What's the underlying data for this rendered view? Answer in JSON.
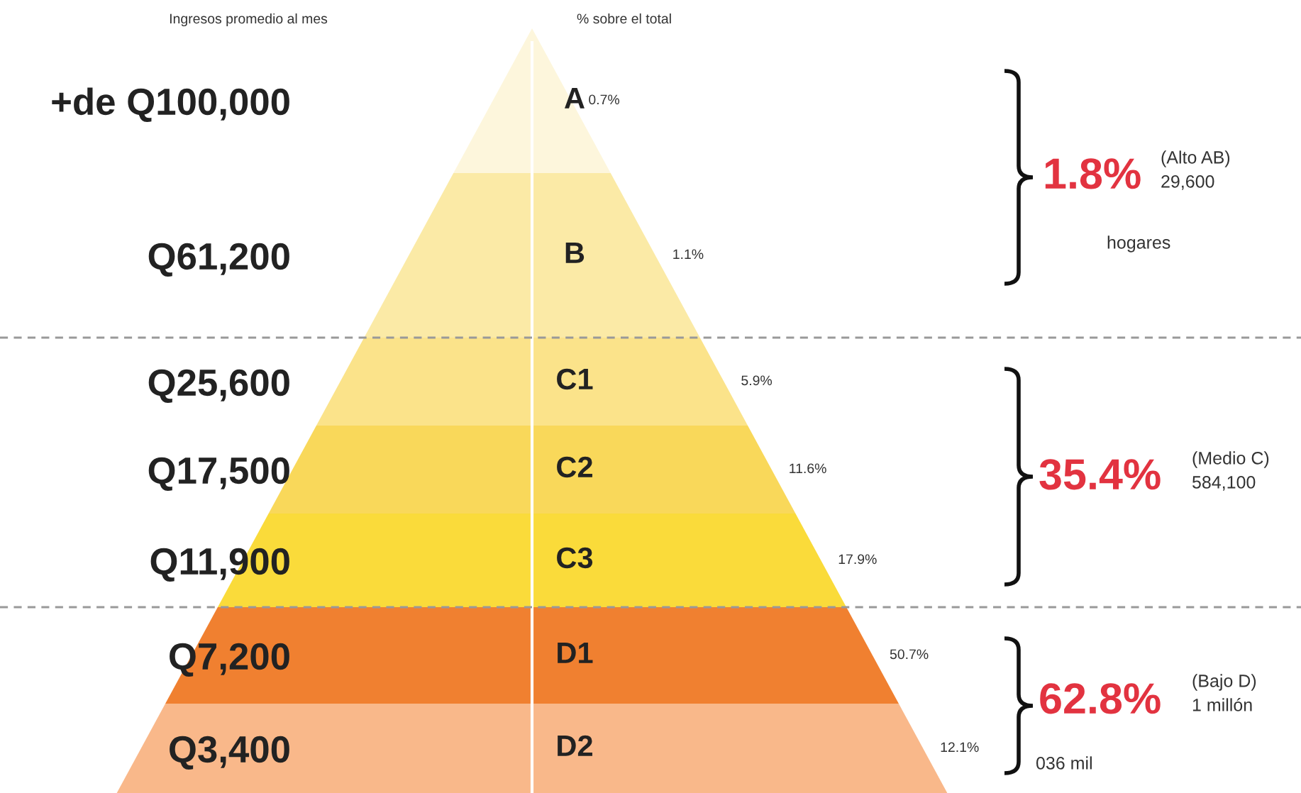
{
  "chart_data": {
    "type": "other",
    "xlabel": "% sobre el total",
    "ylabel": "Ingresos promedio al mes",
    "categories": [
      "A",
      "B",
      "C1",
      "C2",
      "C3",
      "D1",
      "D2"
    ],
    "y_categories": [
      "+de Q100,000",
      "Q61,200",
      "Q25,600",
      "Q17,500",
      "Q11,900",
      "Q7,200",
      "Q3,400"
    ],
    "values": [
      0.7,
      1.1,
      5.9,
      11.6,
      17.9,
      50.7,
      12.1
    ],
    "value_labels": [
      "0.7%",
      "1.1%",
      "5.9%",
      "11.6%",
      "17.9%",
      "50.7%",
      "12.1%"
    ],
    "colors": [
      "#fdf6dc",
      "#fbeaa6",
      "#fbe38a",
      "#f9d85a",
      "#fadb3a",
      "#f08030",
      "#f9b88a"
    ],
    "annotations": [
      "1.8%",
      "(Alto AB)",
      "29,600",
      "hogares",
      "35.4%",
      "(Medio C)",
      "584,100",
      "62.8%",
      "(Bajo D)",
      "1 millón",
      "036 mil"
    ]
  }
}
